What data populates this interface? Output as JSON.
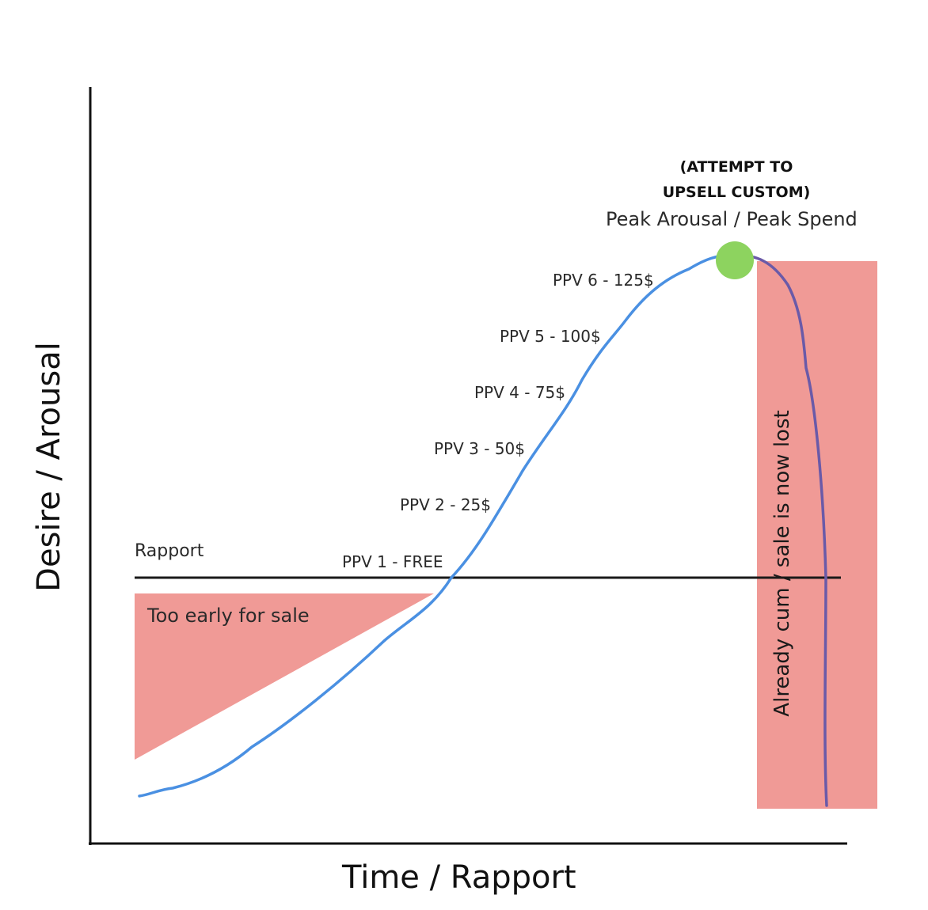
{
  "axes": {
    "x_label": "Time / Rapport",
    "y_label": "Desire / Arousal"
  },
  "rapport_line": {
    "label": "Rapport"
  },
  "zones": {
    "too_early": {
      "label": "Too early for sale",
      "color": "#f09a96"
    },
    "lost": {
      "label": "Already cum / sale is now lost",
      "color": "#f09a96"
    }
  },
  "peak": {
    "label": "Peak Arousal / Peak Spend",
    "note_line1": "(ATTEMPT TO",
    "note_line2": "UPSELL CUSTOM)",
    "marker_color": "#8dd35f"
  },
  "ppv_steps": [
    {
      "label": "PPV 1 - FREE"
    },
    {
      "label": "PPV 2 - 25$"
    },
    {
      "label": "PPV 3 - 50$"
    },
    {
      "label": "PPV 4 - 75$"
    },
    {
      "label": "PPV 5 - 100$"
    },
    {
      "label": "PPV 6 - 125$"
    }
  ],
  "curve": {
    "rise_color": "#4a90e2",
    "drop_color": "#6a5aa8"
  }
}
